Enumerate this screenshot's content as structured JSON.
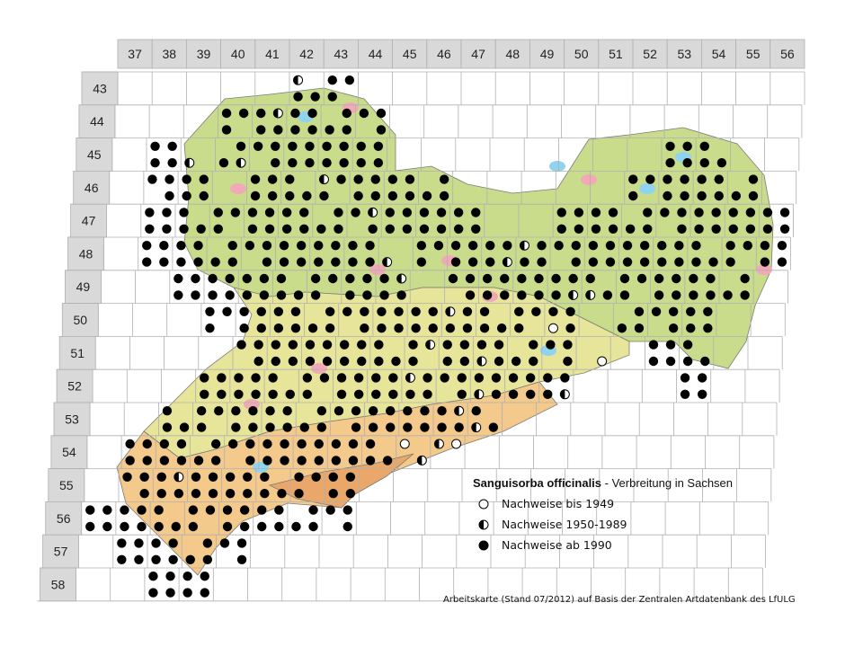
{
  "grid": {
    "columns": [
      "37",
      "38",
      "39",
      "40",
      "41",
      "42",
      "43",
      "44",
      "45",
      "46",
      "47",
      "48",
      "49",
      "50",
      "51",
      "52",
      "53",
      "54",
      "55",
      "56"
    ],
    "rows": [
      "43",
      "44",
      "45",
      "46",
      "47",
      "48",
      "49",
      "50",
      "51",
      "52",
      "53",
      "54",
      "55",
      "56",
      "57",
      "58"
    ]
  },
  "legend": {
    "species": "Sanguisorba officinalis",
    "subtitle": " - Verbreitung  in Sachsen",
    "items": [
      {
        "symbol": "open",
        "label": "Nachweise bis 1949"
      },
      {
        "symbol": "half",
        "label": "Nachweise 1950-1989"
      },
      {
        "symbol": "full",
        "label": "Nachweise ab 1990"
      }
    ]
  },
  "credit": "Arbeitskarte (Stand 07/2012) auf Basis der Zentralen Artdatenbank des LfULG",
  "colors": {
    "grid_header": "#d9d9d9",
    "grid_line": "#b0b0b0",
    "lowland": "#c9dc8c",
    "hill": "#e6e59a",
    "upland": "#f3c98c",
    "mountain": "#e9a86a",
    "water": "#8fd3ef",
    "urban": "#f1a9b8",
    "dot": "#000000"
  },
  "occurrence": {
    "note": "column/row indices refer to grid.columns and grid.rows",
    "full": [
      [
        5,
        0
      ],
      [
        6,
        0
      ],
      [
        3,
        1
      ],
      [
        4,
        1
      ],
      [
        5,
        1
      ],
      [
        6,
        1
      ],
      [
        7,
        1
      ],
      [
        1,
        2
      ],
      [
        3,
        2
      ],
      [
        4,
        2
      ],
      [
        5,
        2
      ],
      [
        6,
        2
      ],
      [
        7,
        2
      ],
      [
        16,
        2
      ],
      [
        17,
        2
      ],
      [
        1,
        3
      ],
      [
        2,
        3
      ],
      [
        4,
        3
      ],
      [
        5,
        3
      ],
      [
        6,
        3
      ],
      [
        7,
        3
      ],
      [
        8,
        3
      ],
      [
        9,
        3
      ],
      [
        15,
        3
      ],
      [
        16,
        3
      ],
      [
        17,
        3
      ],
      [
        18,
        3
      ],
      [
        1,
        4
      ],
      [
        2,
        4
      ],
      [
        3,
        4
      ],
      [
        4,
        4
      ],
      [
        5,
        4
      ],
      [
        6,
        4
      ],
      [
        7,
        4
      ],
      [
        8,
        4
      ],
      [
        9,
        4
      ],
      [
        10,
        4
      ],
      [
        13,
        4
      ],
      [
        14,
        4
      ],
      [
        15,
        4
      ],
      [
        16,
        4
      ],
      [
        17,
        4
      ],
      [
        18,
        4
      ],
      [
        19,
        4
      ],
      [
        1,
        5
      ],
      [
        2,
        5
      ],
      [
        3,
        5
      ],
      [
        4,
        5
      ],
      [
        5,
        5
      ],
      [
        6,
        5
      ],
      [
        7,
        5
      ],
      [
        9,
        5
      ],
      [
        10,
        5
      ],
      [
        11,
        5
      ],
      [
        12,
        5
      ],
      [
        13,
        5
      ],
      [
        14,
        5
      ],
      [
        15,
        5
      ],
      [
        16,
        5
      ],
      [
        17,
        5
      ],
      [
        18,
        5
      ],
      [
        19,
        5
      ],
      [
        2,
        6
      ],
      [
        3,
        6
      ],
      [
        4,
        6
      ],
      [
        5,
        6
      ],
      [
        6,
        6
      ],
      [
        7,
        6
      ],
      [
        8,
        6
      ],
      [
        10,
        6
      ],
      [
        11,
        6
      ],
      [
        12,
        6
      ],
      [
        13,
        6
      ],
      [
        14,
        6
      ],
      [
        15,
        6
      ],
      [
        16,
        6
      ],
      [
        17,
        6
      ],
      [
        18,
        6
      ],
      [
        3,
        7
      ],
      [
        4,
        7
      ],
      [
        5,
        7
      ],
      [
        6,
        7
      ],
      [
        7,
        7
      ],
      [
        8,
        7
      ],
      [
        9,
        7
      ],
      [
        10,
        7
      ],
      [
        11,
        7
      ],
      [
        12,
        7
      ],
      [
        13,
        7
      ],
      [
        15,
        7
      ],
      [
        16,
        7
      ],
      [
        17,
        7
      ],
      [
        4,
        8
      ],
      [
        5,
        8
      ],
      [
        6,
        8
      ],
      [
        7,
        8
      ],
      [
        8,
        8
      ],
      [
        9,
        8
      ],
      [
        10,
        8
      ],
      [
        11,
        8
      ],
      [
        12,
        8
      ],
      [
        13,
        8
      ],
      [
        16,
        8
      ],
      [
        17,
        8
      ],
      [
        3,
        9
      ],
      [
        4,
        9
      ],
      [
        5,
        9
      ],
      [
        6,
        9
      ],
      [
        7,
        9
      ],
      [
        8,
        9
      ],
      [
        9,
        9
      ],
      [
        10,
        9
      ],
      [
        11,
        9
      ],
      [
        12,
        9
      ],
      [
        13,
        9
      ],
      [
        17,
        9
      ],
      [
        2,
        10
      ],
      [
        3,
        10
      ],
      [
        4,
        10
      ],
      [
        5,
        10
      ],
      [
        6,
        10
      ],
      [
        7,
        10
      ],
      [
        8,
        10
      ],
      [
        9,
        10
      ],
      [
        10,
        10
      ],
      [
        11,
        10
      ],
      [
        1,
        11
      ],
      [
        2,
        11
      ],
      [
        3,
        11
      ],
      [
        4,
        11
      ],
      [
        5,
        11
      ],
      [
        6,
        11
      ],
      [
        7,
        11
      ],
      [
        8,
        11
      ],
      [
        1,
        12
      ],
      [
        2,
        12
      ],
      [
        3,
        12
      ],
      [
        4,
        12
      ],
      [
        5,
        12
      ],
      [
        6,
        12
      ],
      [
        7,
        12
      ],
      [
        0,
        13
      ],
      [
        1,
        13
      ],
      [
        2,
        13
      ],
      [
        3,
        13
      ],
      [
        4,
        13
      ],
      [
        5,
        13
      ],
      [
        6,
        13
      ],
      [
        7,
        13
      ],
      [
        1,
        14
      ],
      [
        2,
        14
      ],
      [
        3,
        14
      ],
      [
        4,
        14
      ],
      [
        2,
        15
      ],
      [
        3,
        15
      ]
    ],
    "half": [
      [
        5,
        0
      ],
      [
        4,
        1
      ],
      [
        2,
        2
      ],
      [
        3,
        2
      ],
      [
        6,
        3
      ],
      [
        7,
        4
      ],
      [
        8,
        5
      ],
      [
        11,
        5
      ],
      [
        12,
        5
      ],
      [
        8,
        6
      ],
      [
        14,
        6
      ],
      [
        13,
        6
      ],
      [
        10,
        7
      ],
      [
        9,
        8
      ],
      [
        11,
        8
      ],
      [
        13,
        9
      ],
      [
        9,
        9
      ],
      [
        10,
        10
      ],
      [
        11,
        10
      ],
      [
        9,
        11
      ],
      [
        10,
        11
      ],
      [
        2,
        12
      ],
      [
        11,
        9
      ]
    ],
    "open": [
      [
        10,
        11
      ],
      [
        13,
        7
      ],
      [
        14,
        8
      ],
      [
        9,
        11
      ]
    ]
  }
}
